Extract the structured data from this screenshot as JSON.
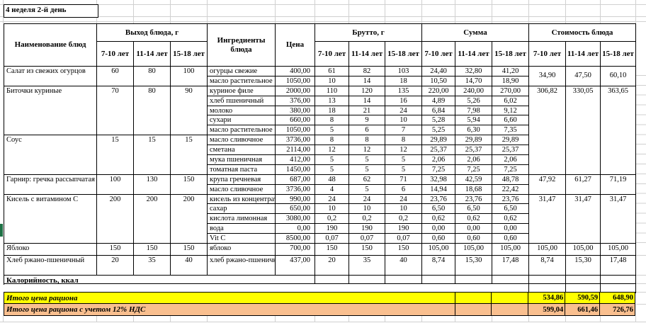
{
  "title": "4 неделя 2-й день",
  "colors": {
    "total_row_1_bg": "#ffff00",
    "total_row_2_bg": "#f9bf8f",
    "grid_border": "#000000",
    "sheet_gridline": "#d0d0d0",
    "green_marker": "#1e7145"
  },
  "table": {
    "headers": {
      "dish": "Наименование блюд",
      "output_group": "Выход блюда, г",
      "ingredients": "Ингредиенты блюда",
      "price": "Цена",
      "gross_group": "Брутто, г",
      "sum_group": "Сумма",
      "cost_group": "Стоимость блюда",
      "age_cols": [
        "7-10 лет",
        "11-14 лет",
        "15-18 лет"
      ]
    },
    "dishes": [
      {
        "name": "Салат из свежих огурцов",
        "output": [
          "60",
          "80",
          "100"
        ],
        "cost": [
          "34,90",
          "47,50",
          "60,10"
        ],
        "center_cost": true,
        "ingredients": [
          {
            "name": "огурцы свежие",
            "price": "400,00",
            "gross": [
              "61",
              "82",
              "103"
            ],
            "sum": [
              "24,40",
              "32,80",
              "41,20"
            ]
          },
          {
            "name": "масло растительное",
            "price": "1050,00",
            "gross": [
              "10",
              "14",
              "18"
            ],
            "sum": [
              "10,50",
              "14,70",
              "18,90"
            ]
          }
        ]
      },
      {
        "name": "Биточки куриные",
        "output": [
          "70",
          "80",
          "90"
        ],
        "cost": [
          "306,82",
          "330,05",
          "363,65"
        ],
        "cost_rows": 9,
        "ingredients": [
          {
            "name": "куриное филе",
            "price": "2000,00",
            "gross": [
              "110",
              "120",
              "135"
            ],
            "sum": [
              "220,00",
              "240,00",
              "270,00"
            ]
          },
          {
            "name": "хлеб пшеничный",
            "price": "376,00",
            "gross": [
              "13",
              "14",
              "16"
            ],
            "sum": [
              "4,89",
              "5,26",
              "6,02"
            ]
          },
          {
            "name": "молоко",
            "price": "380,00",
            "gross": [
              "18",
              "21",
              "24"
            ],
            "sum": [
              "6,84",
              "7,98",
              "9,12"
            ]
          },
          {
            "name": "сухари",
            "price": "660,00",
            "gross": [
              "8",
              "9",
              "10"
            ],
            "sum": [
              "5,28",
              "5,94",
              "6,60"
            ]
          },
          {
            "name": "масло растительное",
            "price": "1050,00",
            "gross": [
              "5",
              "6",
              "7"
            ],
            "sum": [
              "5,25",
              "6,30",
              "7,35"
            ]
          }
        ]
      },
      {
        "name": "Соус",
        "output": [
          "15",
          "15",
          "15"
        ],
        "cost": null,
        "ingredients": [
          {
            "name": "масло сливочное",
            "price": "3736,00",
            "gross": [
              "8",
              "8",
              "8"
            ],
            "sum": [
              "29,89",
              "29,89",
              "29,89"
            ]
          },
          {
            "name": "сметана",
            "price": "2114,00",
            "gross": [
              "12",
              "12",
              "12"
            ],
            "sum": [
              "25,37",
              "25,37",
              "25,37"
            ]
          },
          {
            "name": "мука пшеничная",
            "price": "412,00",
            "gross": [
              "5",
              "5",
              "5"
            ],
            "sum": [
              "2,06",
              "2,06",
              "2,06"
            ]
          },
          {
            "name": "томатная паста",
            "price": "1450,00",
            "gross": [
              "5",
              "5",
              "5"
            ],
            "sum": [
              "7,25",
              "7,25",
              "7,25"
            ]
          }
        ]
      },
      {
        "name": "Гарнир: гречка рассыпчатая",
        "output": [
          "100",
          "130",
          "150"
        ],
        "cost": [
          "47,92",
          "61,27",
          "71,19"
        ],
        "ingredients": [
          {
            "name": "крупа гречневая",
            "price": "687,00",
            "gross": [
              "48",
              "62",
              "71"
            ],
            "sum": [
              "32,98",
              "42,59",
              "48,78"
            ]
          },
          {
            "name": "масло сливочное",
            "price": "3736,00",
            "gross": [
              "4",
              "5",
              "6"
            ],
            "sum": [
              "14,94",
              "18,68",
              "22,42"
            ]
          }
        ]
      },
      {
        "name": "Кисель с витамином С",
        "output": [
          "200",
          "200",
          "200"
        ],
        "cost": [
          "31,47",
          "31,47",
          "31,47"
        ],
        "ingredients": [
          {
            "name": "кисель из концентрата",
            "price": "990,00",
            "gross": [
              "24",
              "24",
              "24"
            ],
            "sum": [
              "23,76",
              "23,76",
              "23,76"
            ]
          },
          {
            "name": "сахар",
            "price": "650,00",
            "gross": [
              "10",
              "10",
              "10"
            ],
            "sum": [
              "6,50",
              "6,50",
              "6,50"
            ]
          },
          {
            "name": "кислота лимонная",
            "price": "3080,00",
            "gross": [
              "0,2",
              "0,2",
              "0,2"
            ],
            "sum": [
              "0,62",
              "0,62",
              "0,62"
            ]
          },
          {
            "name": "вода",
            "price": "0,00",
            "gross": [
              "190",
              "190",
              "190"
            ],
            "sum": [
              "0,00",
              "0,00",
              "0,00"
            ]
          },
          {
            "name": "Vit C",
            "price": "8500,00",
            "gross": [
              "0,07",
              "0,07",
              "0,07"
            ],
            "sum": [
              "0,60",
              "0,60",
              "0,60"
            ]
          }
        ]
      },
      {
        "name": "Яблоко",
        "output": [
          "150",
          "150",
          "150"
        ],
        "cost": [
          "105,00",
          "105,00",
          "105,00"
        ],
        "ingredients": [
          {
            "name": "яблоко",
            "price": "700,00",
            "gross": [
              "150",
              "150",
              "150"
            ],
            "sum": [
              "105,00",
              "105,00",
              "105,00"
            ]
          }
        ]
      },
      {
        "name": "Хлеб ржано-пшеничный",
        "output": [
          "20",
          "35",
          "40"
        ],
        "cost": [
          "8,74",
          "15,30",
          "17,48"
        ],
        "ingredients": [
          {
            "name": "хлеб ржано-пшеничный",
            "price": "437,00",
            "gross": [
              "20",
              "35",
              "40"
            ],
            "sum": [
              "8,74",
              "15,30",
              "17,48"
            ]
          }
        ]
      }
    ],
    "calories_label": "Калорийность, ккал",
    "totals": [
      {
        "label": "Итого цена рациона",
        "values": [
          "534,86",
          "590,59",
          "648,90"
        ]
      },
      {
        "label": "Итого цена рациона с учетом 12% НДС",
        "values": [
          "599,04",
          "661,46",
          "726,76"
        ]
      }
    ]
  }
}
